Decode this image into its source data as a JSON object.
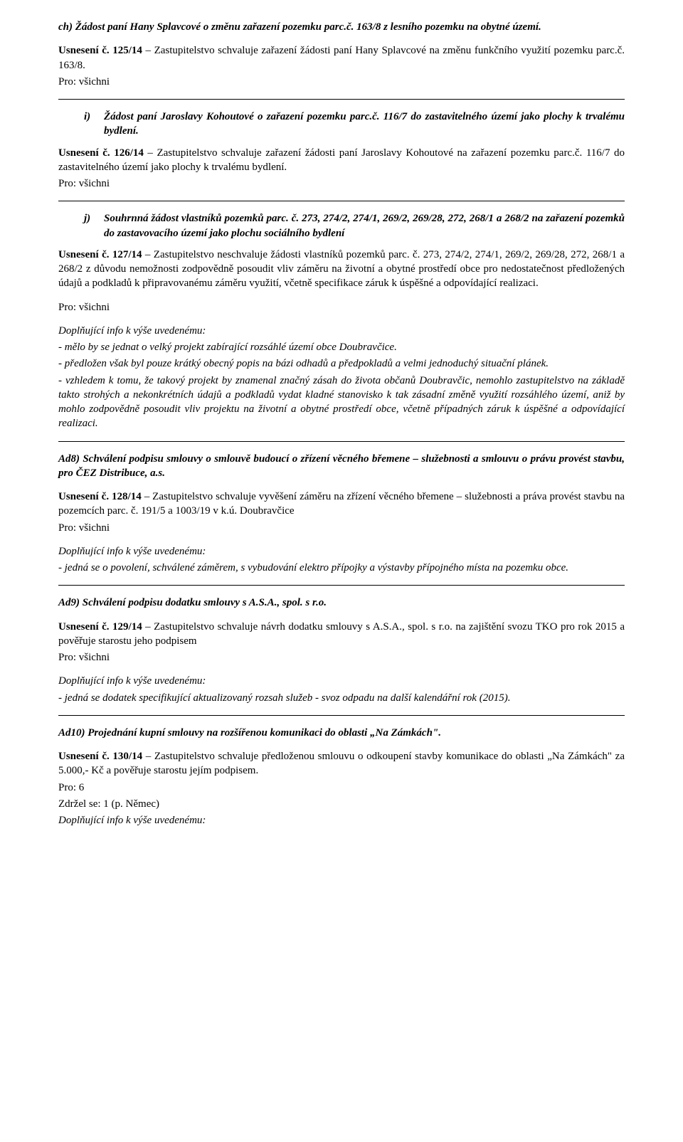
{
  "ch": {
    "heading": "ch) Žádost paní Hany Splavcové o změnu zařazení pozemku parc.č. 163/8 z lesního pozemku na obytné území.",
    "res_lead": "Usnesení č. 125/14",
    "res_body": " – Zastupitelstvo schvaluje zařazení žádosti paní Hany Splavcové na změnu funkčního využití pozemku parc.č. 163/8.",
    "pro": "Pro: všichni"
  },
  "i": {
    "marker": "i)",
    "heading": "Žádost paní Jaroslavy Kohoutové o zařazení pozemku parc.č. 116/7 do zastavitelného území jako plochy k trvalému bydlení.",
    "res_lead": "Usnesení č. 126/14",
    "res_body": " – Zastupitelstvo schvaluje zařazení žádosti paní Jaroslavy Kohoutové na zařazení pozemku parc.č. 116/7 do zastavitelného území jako plochy k trvalému bydlení.",
    "pro": "Pro: všichni"
  },
  "j": {
    "marker": "j)",
    "heading": "Souhrnná žádost vlastníků pozemků parc. č. 273, 274/2, 274/1, 269/2, 269/28, 272, 268/1 a 268/2 na zařazení pozemků do zastavovacího území jako plochu sociálního bydlení",
    "res_lead": "Usnesení č. 127/14",
    "res_body": " – Zastupitelstvo neschvaluje žádosti vlastníků pozemků parc. č. 273, 274/2, 274/1, 269/2, 269/28, 272, 268/1 a 268/2 z důvodu nemožnosti zodpovědně posoudit vliv záměru na životní a obytné prostředí obce pro nedostatečnost předložených údajů a podkladů k připravovanému záměru využití, včetně specifikace záruk k úspěšné a odpovídající realizaci.",
    "pro": "Pro: všichni",
    "comp_title": "Doplňující info k výše uvedenému:",
    "comp1": "- mělo by se jednat o velký projekt zabírající rozsáhlé území obce Doubravčice.",
    "comp2": "- předložen však byl pouze krátký obecný popis na bázi odhadů a předpokladů a velmi jednoduchý situační plánek.",
    "comp3": "- vzhledem k tomu, že takový projekt by znamenal značný zásah do života občanů Doubravčic, nemohlo zastupitelstvo na základě takto strohých a nekonkrétních údajů a podkladů vydat kladné stanovisko k tak zásadní změně využití rozsáhlého území, aniž by mohlo zodpovědně posoudit vliv projektu na životní a obytné prostředí obce, včetně případných záruk k úspěšné a odpovídající realizaci."
  },
  "ad8": {
    "heading": "Ad8) Schválení podpisu smlouvy o smlouvě budoucí o zřízení věcného břemene – služebnosti a smlouvu o právu provést stavbu, pro ČEZ Distribuce, a.s.",
    "res_lead": "Usnesení č. 128/14",
    "res_body": " – Zastupitelstvo schvaluje vyvěšení záměru na zřízení věcného břemene – služebnosti a práva provést stavbu na pozemcích parc. č. 191/5 a 1003/19 v k.ú. Doubravčice",
    "pro": "Pro: všichni",
    "comp_title": "Doplňující info k výše uvedenému:",
    "comp1": "- jedná se o povolení, schválené záměrem, s vybudování elektro přípojky a výstavby přípojného místa na pozemku obce."
  },
  "ad9": {
    "heading": "Ad9) Schválení podpisu dodatku smlouvy s A.S.A., spol. s r.o.",
    "res_lead": "Usnesení č. 129/14",
    "res_body": " – Zastupitelstvo schvaluje návrh dodatku smlouvy s A.S.A., spol. s r.o. na zajištění svozu TKO pro rok 2015 a pověřuje starostu jeho podpisem",
    "pro": "Pro: všichni",
    "comp_title": "Doplňující info k výše uvedenému:",
    "comp1": "- jedná se dodatek specifikující aktualizovaný rozsah služeb - svoz odpadu na další kalendářní rok (2015)."
  },
  "ad10": {
    "heading": "Ad10) Projednání kupní smlouvy na rozšířenou komunikaci do oblasti „Na Zámkách\".",
    "res_lead": "Usnesení č. 130/14",
    "res_body": " – Zastupitelstvo schvaluje předloženou smlouvu o odkoupení stavby komunikace do oblasti „Na Zámkách\" za 5.000,- Kč a pověřuje starostu jejím podpisem.",
    "pro": "Pro: 6",
    "zdrzel": "Zdržel se: 1 (p. Němec)",
    "comp_title": "Doplňující info k výše uvedenému:"
  }
}
